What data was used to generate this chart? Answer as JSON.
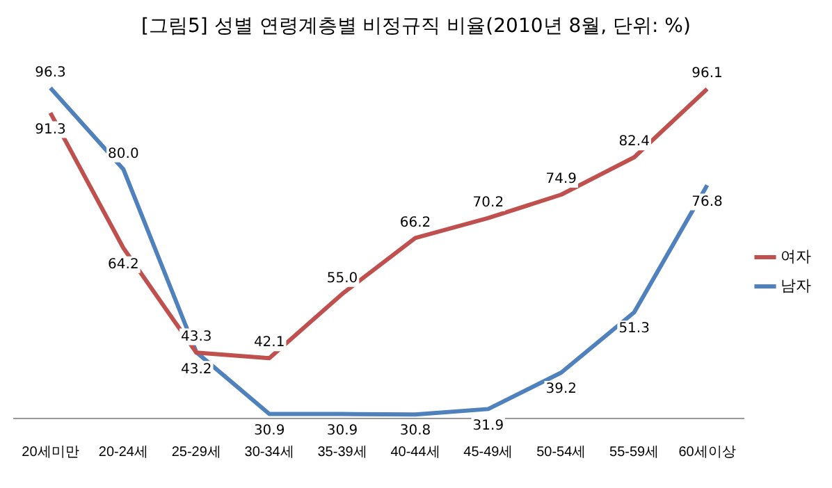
{
  "chart_data": {
    "type": "line",
    "title": "[그림5] 성별 연령계층별 비정규직 비율(2010년 8월, 단위: %)",
    "categories": [
      "20세미만",
      "20-24세",
      "25-29세",
      "30-34세",
      "35-39세",
      "40-44세",
      "45-49세",
      "50-54세",
      "55-59세",
      "60세이상"
    ],
    "series": [
      {
        "name": "여자",
        "color": "#c0504d",
        "values": [
          91.3,
          64.2,
          43.2,
          42.1,
          55.0,
          66.2,
          70.2,
          74.9,
          82.4,
          96.1
        ],
        "value_labels": [
          "91.3",
          "64.2",
          "43.2",
          "42.1",
          "55.0",
          "66.2",
          "70.2",
          "74.9",
          "82.4",
          "96.1"
        ]
      },
      {
        "name": "남자",
        "color": "#4f81bd",
        "values": [
          96.3,
          80.0,
          43.3,
          30.9,
          30.9,
          30.8,
          31.9,
          39.2,
          51.3,
          76.8
        ],
        "value_labels": [
          "96.3",
          "80.0",
          "43.3",
          "30.9",
          "30.9",
          "30.8",
          "31.9",
          "39.2",
          "51.3",
          "76.8"
        ]
      }
    ],
    "tick_labels": "x",
    "grid": false,
    "legend": "right",
    "marker": "none",
    "line_style": "solid"
  }
}
